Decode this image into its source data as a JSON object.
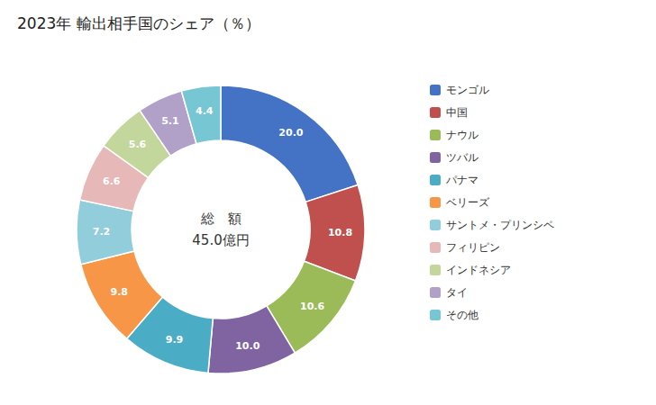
{
  "chart_data": {
    "type": "donut",
    "title": "2023年 輸出相手国のシェア（％）",
    "annotations": [
      "総　額",
      "45.0億円"
    ],
    "categories": [
      "モンゴル",
      "中国",
      "ナウル",
      "ツバル",
      "パナマ",
      "ベリーズ",
      "サントメ・プリンシペ",
      "フィリピン",
      "インドネシア",
      "タイ",
      "その他"
    ],
    "values": [
      20.0,
      10.8,
      10.6,
      10.0,
      9.9,
      9.8,
      7.2,
      6.6,
      5.6,
      5.1,
      4.4
    ],
    "value_labels": [
      "20.0",
      "10.8",
      "10.6",
      "10.0",
      "9.9",
      "9.8",
      "7.2",
      "6.6",
      "5.6",
      "5.1",
      "4.4"
    ],
    "colors": [
      "#4472C4",
      "#C0504D",
      "#9BBB59",
      "#8064A2",
      "#4BACC6",
      "#F79646",
      "#92CDDC",
      "#E6B8B7",
      "#C3D69B",
      "#B1A0C7",
      "#76C6D4"
    ],
    "data_labels": true,
    "legend": "right"
  }
}
